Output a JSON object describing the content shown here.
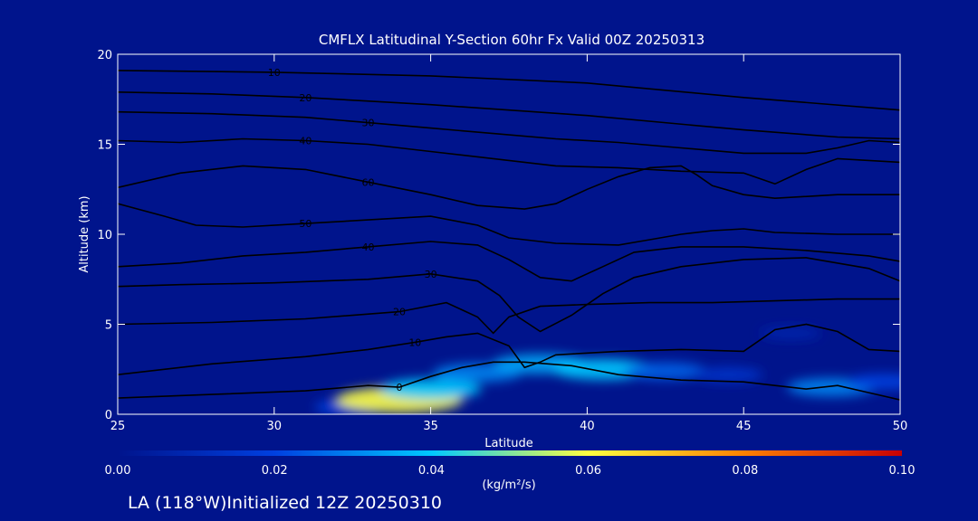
{
  "chart_data": {
    "type": "heatmap",
    "title": "CMFLX Latitudinal Y-Section 60hr  Fx Valid 00Z 20250313",
    "xlabel": "Latitude",
    "ylabel": "Altitude (km)",
    "xlim": [
      25,
      50
    ],
    "ylim": [
      0,
      20
    ],
    "xticks": [
      "25",
      "30",
      "35",
      "40",
      "45",
      "50"
    ],
    "yticks": [
      "0",
      "5",
      "10",
      "15",
      "20"
    ],
    "grid": false,
    "colorbar": {
      "ticks": [
        "0.00",
        "0.02",
        "0.04",
        "0.06",
        "0.08",
        "0.10"
      ],
      "range": [
        0,
        0.1
      ],
      "unit_label": "(kg/m²/s)",
      "colors": [
        "#00148c",
        "#0040e0",
        "#00c8ff",
        "#ffff40",
        "#ff8000",
        "#c80000"
      ]
    },
    "field": [
      {
        "lat": 32.5,
        "alt": 0.4,
        "value": 0.02
      },
      {
        "lat": 34.0,
        "alt": 0.8,
        "value": 0.06
      },
      {
        "lat": 35.0,
        "alt": 1.4,
        "value": 0.04
      },
      {
        "lat": 36.5,
        "alt": 2.3,
        "value": 0.03
      },
      {
        "lat": 38.5,
        "alt": 2.8,
        "value": 0.035
      },
      {
        "lat": 40.5,
        "alt": 2.5,
        "value": 0.04
      },
      {
        "lat": 42.5,
        "alt": 2.4,
        "value": 0.025
      },
      {
        "lat": 44.5,
        "alt": 2.2,
        "value": 0.015
      },
      {
        "lat": 46.5,
        "alt": 4.5,
        "value": 0.008
      },
      {
        "lat": 47.8,
        "alt": 1.5,
        "value": 0.03
      },
      {
        "lat": 49.5,
        "alt": 1.8,
        "value": 0.02
      }
    ],
    "contours": [
      {
        "label": "10",
        "points": [
          [
            25,
            19.1
          ],
          [
            30,
            19.0
          ],
          [
            35,
            18.8
          ],
          [
            40,
            18.4
          ],
          [
            45,
            17.6
          ],
          [
            50,
            16.9
          ]
        ]
      },
      {
        "label": "20",
        "points": [
          [
            25,
            17.9
          ],
          [
            28,
            17.8
          ],
          [
            31,
            17.6
          ],
          [
            35,
            17.2
          ],
          [
            40,
            16.6
          ],
          [
            45,
            15.8
          ],
          [
            48,
            15.4
          ],
          [
            50,
            15.3
          ]
        ]
      },
      {
        "label": "30",
        "points": [
          [
            25,
            16.8
          ],
          [
            28,
            16.7
          ],
          [
            31,
            16.5
          ],
          [
            33,
            16.2
          ],
          [
            35,
            15.9
          ],
          [
            37,
            15.6
          ],
          [
            39,
            15.3
          ],
          [
            41,
            15.1
          ],
          [
            43,
            14.8
          ],
          [
            45,
            14.5
          ],
          [
            47,
            14.5
          ],
          [
            48,
            14.8
          ],
          [
            49,
            15.2
          ],
          [
            50,
            15.1
          ]
        ]
      },
      {
        "label": "40",
        "points": [
          [
            25,
            15.2
          ],
          [
            27,
            15.1
          ],
          [
            29,
            15.3
          ],
          [
            31,
            15.2
          ],
          [
            33,
            15.0
          ],
          [
            35,
            14.6
          ],
          [
            37,
            14.2
          ],
          [
            39,
            13.8
          ],
          [
            41,
            13.7
          ],
          [
            43,
            13.5
          ],
          [
            45,
            13.4
          ],
          [
            46,
            12.8
          ],
          [
            47,
            13.6
          ],
          [
            48,
            14.2
          ],
          [
            50,
            14.0
          ]
        ]
      },
      {
        "label": "60",
        "points": [
          [
            25,
            12.6
          ],
          [
            27,
            13.4
          ],
          [
            29,
            13.8
          ],
          [
            31,
            13.6
          ],
          [
            33,
            12.9
          ],
          [
            35,
            12.2
          ],
          [
            36.5,
            11.6
          ],
          [
            38,
            11.4
          ],
          [
            39,
            11.7
          ],
          [
            40,
            12.5
          ],
          [
            41,
            13.2
          ],
          [
            42,
            13.7
          ],
          [
            43,
            13.8
          ],
          [
            43.5,
            13.3
          ],
          [
            44,
            12.7
          ],
          [
            45,
            12.2
          ],
          [
            46,
            12.0
          ],
          [
            48,
            12.2
          ],
          [
            50,
            12.2
          ]
        ]
      },
      {
        "label": "50",
        "points": [
          [
            25,
            11.7
          ],
          [
            26.5,
            11.0
          ],
          [
            27.5,
            10.5
          ],
          [
            29,
            10.4
          ],
          [
            31,
            10.6
          ],
          [
            33,
            10.8
          ],
          [
            35,
            11.0
          ],
          [
            36.5,
            10.5
          ],
          [
            37.5,
            9.8
          ],
          [
            39,
            9.5
          ],
          [
            41,
            9.4
          ],
          [
            42,
            9.7
          ],
          [
            43,
            10.0
          ],
          [
            44,
            10.2
          ],
          [
            45,
            10.3
          ],
          [
            46,
            10.1
          ],
          [
            48,
            10.0
          ],
          [
            50,
            10.0
          ]
        ]
      },
      {
        "label": "40",
        "points": [
          [
            25,
            8.2
          ],
          [
            27,
            8.4
          ],
          [
            29,
            8.8
          ],
          [
            31,
            9.0
          ],
          [
            33,
            9.3
          ],
          [
            35,
            9.6
          ],
          [
            36.5,
            9.4
          ],
          [
            37.5,
            8.6
          ],
          [
            38.5,
            7.6
          ],
          [
            39.5,
            7.4
          ],
          [
            40.5,
            8.2
          ],
          [
            41.5,
            9.0
          ],
          [
            43,
            9.3
          ],
          [
            45,
            9.3
          ],
          [
            47,
            9.1
          ],
          [
            49,
            8.8
          ],
          [
            50,
            8.5
          ]
        ]
      },
      {
        "label": "30",
        "points": [
          [
            25,
            7.1
          ],
          [
            27,
            7.2
          ],
          [
            30,
            7.3
          ],
          [
            33,
            7.5
          ],
          [
            35,
            7.8
          ],
          [
            36.5,
            7.4
          ],
          [
            37.2,
            6.6
          ],
          [
            37.8,
            5.4
          ],
          [
            38.5,
            4.6
          ],
          [
            39.5,
            5.5
          ],
          [
            40.5,
            6.7
          ],
          [
            41.5,
            7.6
          ],
          [
            43,
            8.2
          ],
          [
            45,
            8.6
          ],
          [
            47,
            8.7
          ],
          [
            49,
            8.1
          ],
          [
            50,
            7.4
          ]
        ]
      },
      {
        "label": "20",
        "points": [
          [
            25,
            5.0
          ],
          [
            28,
            5.1
          ],
          [
            31,
            5.3
          ],
          [
            34,
            5.7
          ],
          [
            35.5,
            6.2
          ],
          [
            36.5,
            5.4
          ],
          [
            37,
            4.5
          ],
          [
            37.5,
            5.4
          ],
          [
            38.5,
            6.0
          ],
          [
            40,
            6.1
          ],
          [
            42,
            6.2
          ],
          [
            44,
            6.2
          ],
          [
            46,
            6.3
          ],
          [
            48,
            6.4
          ],
          [
            50,
            6.4
          ]
        ]
      },
      {
        "label": "10",
        "points": [
          [
            25,
            2.2
          ],
          [
            28,
            2.8
          ],
          [
            31,
            3.2
          ],
          [
            33,
            3.6
          ],
          [
            34.5,
            4.0
          ],
          [
            35.5,
            4.3
          ],
          [
            36.5,
            4.5
          ],
          [
            37.5,
            3.8
          ],
          [
            38,
            2.6
          ],
          [
            38.5,
            2.9
          ],
          [
            39,
            3.3
          ],
          [
            41,
            3.5
          ],
          [
            43,
            3.6
          ],
          [
            45,
            3.5
          ],
          [
            46,
            4.7
          ],
          [
            47,
            5.0
          ],
          [
            48,
            4.6
          ],
          [
            49,
            3.6
          ],
          [
            50,
            3.5
          ]
        ]
      },
      {
        "label": "0",
        "points": [
          [
            25,
            0.9
          ],
          [
            28,
            1.1
          ],
          [
            31,
            1.3
          ],
          [
            33,
            1.6
          ],
          [
            34,
            1.5
          ],
          [
            35,
            2.1
          ],
          [
            36,
            2.6
          ],
          [
            37,
            2.9
          ],
          [
            38,
            2.9
          ],
          [
            39.5,
            2.7
          ],
          [
            41,
            2.2
          ],
          [
            43,
            1.9
          ],
          [
            45,
            1.8
          ],
          [
            46,
            1.6
          ],
          [
            47,
            1.4
          ],
          [
            48,
            1.6
          ],
          [
            49,
            1.2
          ],
          [
            50,
            0.8
          ]
        ]
      }
    ]
  },
  "footer": {
    "station_label": "LA (118°W)Initialized 12Z 20250310"
  }
}
